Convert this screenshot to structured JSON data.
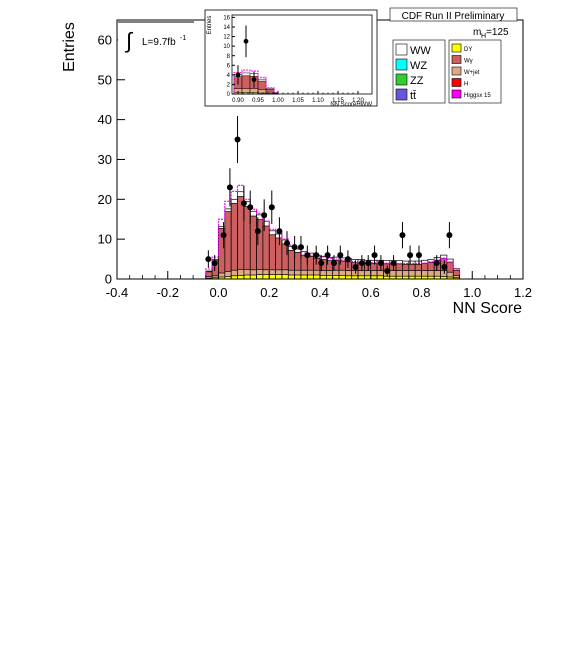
{
  "chart_data": {
    "type": "bar",
    "ylabel": "Entries",
    "xlabel": "NN Score",
    "xlim": [
      -0.4,
      1.2
    ],
    "ylim": [
      0,
      65
    ],
    "x_ticks": [
      "-0.4",
      "-0.2",
      "0.0",
      "0.2",
      "0.4",
      "0.6",
      "0.8",
      "1.0",
      "1.2"
    ],
    "x_tick_values": [
      -0.4,
      -0.2,
      0.0,
      0.2,
      0.4,
      0.6,
      0.8,
      1.0,
      1.2
    ],
    "y_ticks": [
      "0",
      "10",
      "20",
      "30",
      "40",
      "50",
      "60"
    ],
    "y_tick_values": [
      0,
      10,
      20,
      30,
      40,
      50,
      60
    ],
    "header": "CDF Run II Preliminary",
    "lumi_integral_symbol": "∫",
    "lumi_text": "L=9.7fb",
    "lumi_superscript": "-1",
    "mass_label": "m",
    "mass_subscript": "H",
    "mass_value": "=125",
    "legend_left": [
      {
        "label": "WW",
        "color": "#ffffff"
      },
      {
        "label": "WZ",
        "color": "#00ffff"
      },
      {
        "label": "ZZ",
        "color": "#33cc33"
      },
      {
        "label": "tt̄",
        "color": "#6655dd"
      }
    ],
    "legend_right": [
      {
        "label": "DY",
        "color": "#ffff00"
      },
      {
        "label": "Wγ",
        "color": "#cc6060"
      },
      {
        "label": "W+jet",
        "color": "#ddaa88"
      },
      {
        "label": "H",
        "color": "#ff0000"
      },
      {
        "label": "Higgsx 15",
        "color": "#ff00ff"
      }
    ],
    "bin_edges": [
      -0.05,
      -0.025,
      0.0,
      0.025,
      0.05,
      0.075,
      0.1,
      0.125,
      0.15,
      0.175,
      0.2,
      0.225,
      0.25,
      0.275,
      0.3,
      0.325,
      0.35,
      0.375,
      0.4,
      0.425,
      0.45,
      0.475,
      0.5,
      0.525,
      0.55,
      0.575,
      0.6,
      0.625,
      0.65,
      0.675,
      0.7,
      0.725,
      0.75,
      0.775,
      0.8,
      0.825,
      0.85,
      0.875,
      0.9,
      0.925,
      0.95
    ],
    "stack_order": [
      "DY",
      "W+jet",
      "Wγ",
      "WW"
    ],
    "series": [
      {
        "name": "DY",
        "color": "#ffff00",
        "values": [
          0.2,
          0.3,
          0.5,
          0.6,
          0.8,
          0.9,
          1.0,
          1.0,
          1.1,
          1.1,
          1.1,
          1.1,
          1.1,
          1.0,
          1.0,
          1.0,
          1.0,
          1.0,
          0.9,
          0.9,
          0.9,
          0.9,
          0.8,
          0.8,
          0.8,
          0.8,
          0.8,
          0.8,
          0.7,
          0.7,
          0.7,
          0.7,
          0.7,
          0.7,
          0.7,
          0.7,
          0.7,
          0.6,
          0.5,
          0.3
        ]
      },
      {
        "name": "W+jet",
        "color": "#ddaa88",
        "values": [
          0.4,
          0.5,
          1.0,
          1.3,
          1.4,
          1.5,
          1.4,
          1.3,
          1.3,
          1.2,
          1.2,
          1.2,
          1.2,
          1.2,
          1.2,
          1.2,
          1.2,
          1.2,
          1.2,
          1.2,
          1.3,
          1.3,
          1.3,
          1.3,
          1.3,
          1.3,
          1.3,
          1.3,
          1.3,
          1.4,
          1.4,
          1.4,
          1.4,
          1.4,
          1.4,
          1.4,
          1.4,
          1.5,
          1.2,
          0.6
        ]
      },
      {
        "name": "Wγ",
        "color": "#cc6060",
        "values": [
          1.2,
          3.8,
          11.2,
          15.0,
          16.8,
          18.3,
          15.8,
          13.5,
          12.5,
          11.0,
          8.8,
          8.0,
          6.5,
          5.0,
          4.5,
          3.8,
          3.5,
          3.0,
          2.8,
          2.5,
          2.5,
          2.3,
          2.2,
          2.0,
          2.0,
          1.8,
          1.8,
          1.8,
          1.8,
          1.7,
          1.7,
          1.6,
          1.6,
          1.6,
          1.8,
          2.0,
          2.5,
          3.0,
          2.5,
          1.3
        ]
      },
      {
        "name": "WW",
        "color": "#ffffff",
        "values": [
          0.2,
          0.3,
          0.5,
          0.7,
          1.0,
          1.2,
          1.2,
          1.2,
          1.2,
          1.2,
          1.0,
          1.0,
          1.0,
          1.0,
          0.9,
          0.9,
          0.8,
          0.8,
          0.8,
          0.8,
          0.8,
          0.8,
          0.8,
          0.8,
          0.8,
          0.8,
          0.8,
          0.8,
          0.8,
          0.8,
          0.8,
          0.8,
          0.8,
          0.8,
          0.8,
          0.8,
          0.8,
          0.9,
          0.8,
          0.4
        ]
      }
    ],
    "signal_x15": {
      "name": "Higgsx 15",
      "color": "#ff00ff",
      "values": [
        2.5,
        5.5,
        15.0,
        19.5,
        22.0,
        23.5,
        20.0,
        17.5,
        16.5,
        14.5,
        12.5,
        11.5,
        10.0,
        8.5,
        7.5,
        6.8,
        6.0,
        5.8,
        5.5,
        5.2,
        5.0,
        4.8,
        4.6,
        4.4,
        4.3,
        4.2,
        4.1,
        4.0,
        4.0,
        4.0,
        3.9,
        3.9,
        3.9,
        3.9,
        4.0,
        4.3,
        4.8,
        5.2,
        4.3,
        2.5
      ]
    },
    "data_points": [
      {
        "x": -0.04,
        "y": 5,
        "err": 2.2
      },
      {
        "x": -0.015,
        "y": 4,
        "err": 2
      },
      {
        "x": 0.02,
        "y": 11,
        "err": 3.3
      },
      {
        "x": 0.045,
        "y": 23,
        "err": 4.8
      },
      {
        "x": 0.075,
        "y": 35,
        "err": 5.9
      },
      {
        "x": 0.1,
        "y": 19,
        "err": 4.4
      },
      {
        "x": 0.125,
        "y": 18,
        "err": 4.2
      },
      {
        "x": 0.155,
        "y": 12,
        "err": 3.5
      },
      {
        "x": 0.18,
        "y": 16,
        "err": 4
      },
      {
        "x": 0.21,
        "y": 18,
        "err": 4.2
      },
      {
        "x": 0.24,
        "y": 12,
        "err": 3.5
      },
      {
        "x": 0.27,
        "y": 9,
        "err": 3
      },
      {
        "x": 0.3,
        "y": 8,
        "err": 2.8
      },
      {
        "x": 0.325,
        "y": 8,
        "err": 2.8
      },
      {
        "x": 0.35,
        "y": 6,
        "err": 2.4
      },
      {
        "x": 0.385,
        "y": 6,
        "err": 2.4
      },
      {
        "x": 0.405,
        "y": 4,
        "err": 2
      },
      {
        "x": 0.43,
        "y": 6,
        "err": 2.4
      },
      {
        "x": 0.455,
        "y": 4,
        "err": 2
      },
      {
        "x": 0.48,
        "y": 6,
        "err": 2.4
      },
      {
        "x": 0.51,
        "y": 5,
        "err": 2.2
      },
      {
        "x": 0.54,
        "y": 3,
        "err": 1.7
      },
      {
        "x": 0.565,
        "y": 4,
        "err": 2
      },
      {
        "x": 0.59,
        "y": 4,
        "err": 2
      },
      {
        "x": 0.615,
        "y": 6,
        "err": 2.4
      },
      {
        "x": 0.64,
        "y": 4,
        "err": 2
      },
      {
        "x": 0.665,
        "y": 2,
        "err": 1.4
      },
      {
        "x": 0.69,
        "y": 4,
        "err": 2
      },
      {
        "x": 0.725,
        "y": 11,
        "err": 3.3
      },
      {
        "x": 0.755,
        "y": 6,
        "err": 2.4
      },
      {
        "x": 0.79,
        "y": 6,
        "err": 2.4
      },
      {
        "x": 0.86,
        "y": 4,
        "err": 2
      },
      {
        "x": 0.89,
        "y": 3,
        "err": 1.7
      },
      {
        "x": 0.91,
        "y": 11,
        "err": 3.3
      }
    ],
    "inset": {
      "ylabel": "Entries",
      "xlabel": "NN ScoreHWW",
      "xlim": [
        0.885,
        1.235
      ],
      "ylim": [
        0,
        16.5
      ],
      "x_ticks": [
        "0.90",
        "0.95",
        "1.00",
        "1.05",
        "1.10",
        "1.15",
        "1.20"
      ],
      "x_tick_values": [
        0.9,
        0.95,
        1.0,
        1.05,
        1.1,
        1.15,
        1.2
      ],
      "y_ticks": [
        "0",
        "2",
        "4",
        "6",
        "8",
        "10",
        "12",
        "14",
        "16"
      ],
      "y_tick_values": [
        0,
        2,
        4,
        6,
        8,
        10,
        12,
        14,
        16
      ],
      "bin_edges": [
        0.89,
        0.91,
        0.93,
        0.95,
        0.97,
        0.99,
        1.0
      ],
      "series": [
        {
          "name": "DY",
          "color": "#ffff00",
          "values": [
            0.3,
            0.3,
            0.3,
            0.2,
            0.1,
            0.0
          ]
        },
        {
          "name": "W+jet",
          "color": "#ddaa88",
          "values": [
            0.8,
            0.8,
            0.8,
            0.7,
            0.3,
            0.1
          ]
        },
        {
          "name": "Wγ",
          "color": "#cc6060",
          "values": [
            2.5,
            2.7,
            2.6,
            1.8,
            0.6,
            0.1
          ]
        },
        {
          "name": "WW",
          "color": "#ffffff",
          "values": [
            0.5,
            0.6,
            0.6,
            0.4,
            0.2,
            0.05
          ]
        }
      ],
      "signal_x15": {
        "name": "Higgsx 15",
        "color": "#ff00ff",
        "values": [
          4.5,
          5.0,
          4.8,
          3.5,
          1.3,
          0.3
        ]
      },
      "data_points": [
        {
          "x": 0.9,
          "y": 4,
          "err": 2
        },
        {
          "x": 0.92,
          "y": 11,
          "err": 3.3
        },
        {
          "x": 0.94,
          "y": 3,
          "err": 1.7
        }
      ]
    }
  }
}
